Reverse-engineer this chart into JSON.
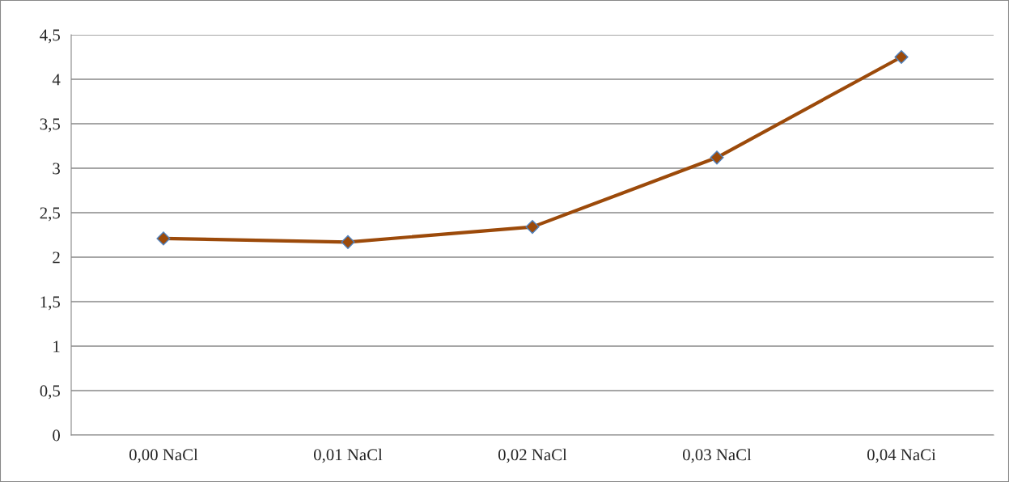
{
  "chart_data": {
    "type": "line",
    "categories": [
      "0,00 NaCl",
      "0,01 NaCl",
      "0,02 NaCl",
      "0,03 NaCl",
      "0,04 NaCi"
    ],
    "series": [
      {
        "color": "#9c4a0a",
        "values": [
          2.21,
          2.17,
          2.34,
          3.12,
          4.25
        ]
      }
    ],
    "ylim": [
      0,
      4.5
    ],
    "yticks": [
      0,
      {
        "value": 0.5,
        "label": "0,5"
      },
      1,
      {
        "value": 1.5,
        "label": "1,5"
      },
      2,
      {
        "value": 2.5,
        "label": "2,5"
      },
      3,
      {
        "value": 3.5,
        "label": "3,5"
      },
      4,
      {
        "value": 4.5,
        "label": "4,5"
      }
    ],
    "grid": "y",
    "marker": "diamond",
    "line_style": "solid",
    "legend": false
  }
}
